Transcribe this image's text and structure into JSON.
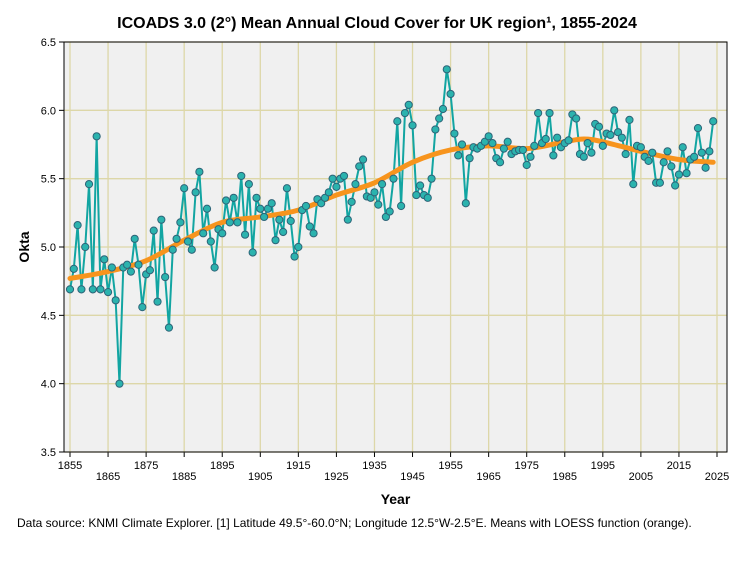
{
  "chart_data": {
    "type": "line",
    "title": "ICOADS 3.0 (2°) Mean Annual Cloud Cover for UK region¹, 1855-2024",
    "xlabel": "Year",
    "ylabel": "Okta",
    "xlim": [
      1853,
      2028
    ],
    "ylim": [
      3.5,
      6.5
    ],
    "grid": true,
    "x_ticks": [
      1855,
      1865,
      1875,
      1885,
      1895,
      1905,
      1915,
      1925,
      1935,
      1945,
      1955,
      1965,
      1975,
      1985,
      1995,
      2005,
      2015,
      2025
    ],
    "y_ticks": [
      3.5,
      4.0,
      4.5,
      5.0,
      5.5,
      6.0,
      6.5
    ],
    "y_tick_labels": [
      "3.5",
      "4.0",
      "4.5",
      "5.0",
      "5.5",
      "6.0",
      "6.5"
    ],
    "start_year": 1855,
    "series": [
      {
        "name": "Mean annual cloud cover",
        "color": "#12a5a2",
        "values": [
          4.69,
          4.84,
          5.16,
          4.69,
          5.0,
          5.46,
          4.69,
          5.81,
          4.69,
          4.91,
          4.67,
          4.85,
          4.61,
          4.0,
          4.85,
          4.87,
          4.82,
          5.06,
          4.87,
          4.56,
          4.8,
          4.83,
          5.12,
          4.6,
          5.2,
          4.78,
          4.41,
          4.98,
          5.06,
          5.18,
          5.43,
          5.04,
          4.98,
          5.4,
          5.55,
          5.1,
          5.28,
          5.04,
          4.85,
          5.13,
          5.1,
          5.34,
          5.18,
          5.36,
          5.18,
          5.52,
          5.09,
          5.46,
          4.96,
          5.36,
          5.28,
          5.22,
          5.28,
          5.32,
          5.05,
          5.2,
          5.11,
          5.43,
          5.19,
          4.93,
          5.0,
          5.27,
          5.3,
          5.15,
          5.1,
          5.35,
          5.32,
          5.36,
          5.4,
          5.5,
          5.44,
          5.5,
          5.52,
          5.2,
          5.33,
          5.46,
          5.59,
          5.64,
          5.37,
          5.36,
          5.4,
          5.31,
          5.46,
          5.22,
          5.26,
          5.5,
          5.92,
          5.3,
          5.98,
          6.04,
          5.89,
          5.38,
          5.45,
          5.38,
          5.36,
          5.5,
          5.86,
          5.94,
          6.01,
          6.3,
          6.12,
          5.83,
          5.67,
          5.75,
          5.32,
          5.65,
          5.73,
          5.72,
          5.74,
          5.77,
          5.81,
          5.76,
          5.65,
          5.62,
          5.72,
          5.77,
          5.68,
          5.7,
          5.71,
          5.71,
          5.6,
          5.66,
          5.74,
          5.98,
          5.76,
          5.79,
          5.98,
          5.67,
          5.8,
          5.73,
          5.76,
          5.78,
          5.97,
          5.94,
          5.68,
          5.66,
          5.76,
          5.69,
          5.9,
          5.88,
          5.74,
          5.83,
          5.82,
          6.0,
          5.84,
          5.8,
          5.68,
          5.93,
          5.46,
          5.74,
          5.73,
          5.66,
          5.63,
          5.69,
          5.47,
          5.47,
          5.62,
          5.7,
          5.59,
          5.45,
          5.53,
          5.73,
          5.54,
          5.64,
          5.66,
          5.87,
          5.69,
          5.58,
          5.7,
          5.92
        ]
      },
      {
        "name": "LOESS",
        "color": "#f7941d",
        "x": [
          1855,
          1865,
          1875,
          1885,
          1895,
          1905,
          1915,
          1925,
          1935,
          1945,
          1955,
          1965,
          1975,
          1985,
          1990,
          1995,
          2005,
          2015,
          2024
        ],
        "values": [
          4.77,
          4.82,
          4.9,
          5.05,
          5.18,
          5.22,
          5.27,
          5.38,
          5.47,
          5.62,
          5.71,
          5.74,
          5.72,
          5.77,
          5.79,
          5.77,
          5.7,
          5.64,
          5.62
        ]
      }
    ]
  },
  "footnote": "Data source: KNMI Climate Explorer. [1] Latitude 49.5°-60.0°N; Longitude 12.5°W-2.5°E. Means with LOESS function (orange)."
}
